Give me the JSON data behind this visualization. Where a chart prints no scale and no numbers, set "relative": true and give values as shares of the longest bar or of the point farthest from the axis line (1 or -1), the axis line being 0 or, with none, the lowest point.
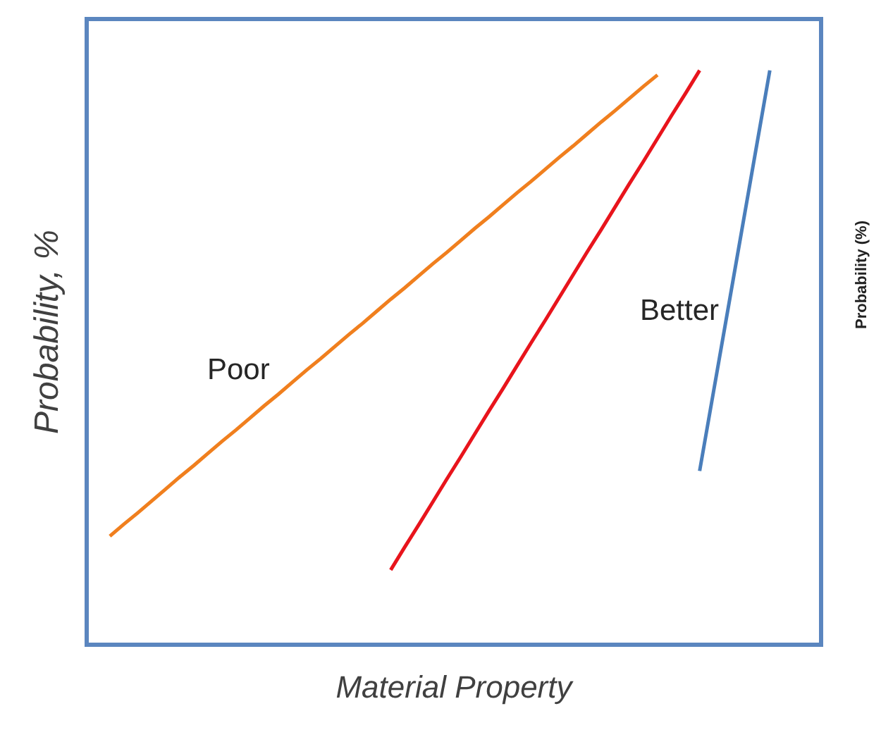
{
  "chart_data": {
    "type": "line",
    "relative": true,
    "xlabel": "Material Property",
    "ylabel": "Probability, %",
    "tick_labels": false,
    "legend": false,
    "marker": "none",
    "line_style": "solid",
    "annotations": [
      "Probability (%)"
    ],
    "categories": [
      null,
      null,
      null,
      null,
      null,
      null,
      null,
      null,
      null,
      null,
      null,
      null,
      null,
      null,
      null,
      null,
      null,
      null,
      null,
      null,
      null,
      null,
      null,
      null,
      null,
      null,
      null,
      null,
      null,
      null,
      null,
      null,
      null,
      null,
      null,
      null,
      null,
      null,
      null,
      null,
      null,
      null,
      null,
      null,
      null,
      null,
      null,
      null,
      null,
      null,
      null,
      null
    ],
    "series": [
      {
        "name": "Poor",
        "color": "#f07f1e",
        "values": [
          null,
          0.186,
          0.207,
          0.227,
          0.248,
          0.269,
          0.29,
          0.31,
          0.331,
          0.352,
          0.372,
          0.393,
          0.414,
          0.434,
          0.455,
          0.476,
          0.496,
          0.517,
          0.538,
          0.558,
          0.579,
          0.6,
          0.62,
          0.641,
          0.662,
          0.682,
          0.703,
          0.724,
          0.744,
          0.765,
          0.786,
          0.806,
          0.827,
          0.848,
          0.868,
          0.889,
          0.91,
          0.93,
          0.951,
          0.972,
          0.992,
          null,
          null,
          null,
          null,
          null,
          null,
          null,
          null,
          null,
          null,
          null
        ]
      },
      {
        "color": "#e8141c",
        "values": [
          null,
          null,
          null,
          null,
          null,
          null,
          null,
          null,
          null,
          null,
          null,
          null,
          null,
          null,
          null,
          null,
          null,
          null,
          null,
          null,
          null,
          0.127,
          0.167,
          0.206,
          0.246,
          0.286,
          0.325,
          0.365,
          0.405,
          0.444,
          0.484,
          0.524,
          0.563,
          0.603,
          0.643,
          0.683,
          0.722,
          0.762,
          0.802,
          0.841,
          0.881,
          0.921,
          0.96,
          1.0,
          null,
          null,
          null,
          null,
          null,
          null,
          null,
          null
        ]
      },
      {
        "name": "Better",
        "color": "#4a7ebb",
        "values": [
          null,
          null,
          null,
          null,
          null,
          null,
          null,
          null,
          null,
          null,
          null,
          null,
          null,
          null,
          null,
          null,
          null,
          null,
          null,
          null,
          null,
          null,
          null,
          null,
          null,
          null,
          null,
          null,
          null,
          null,
          null,
          null,
          null,
          null,
          null,
          null,
          null,
          null,
          null,
          null,
          null,
          null,
          null,
          0.3,
          0.44,
          0.58,
          0.72,
          0.86,
          1.0,
          null,
          null,
          null
        ]
      }
    ]
  }
}
